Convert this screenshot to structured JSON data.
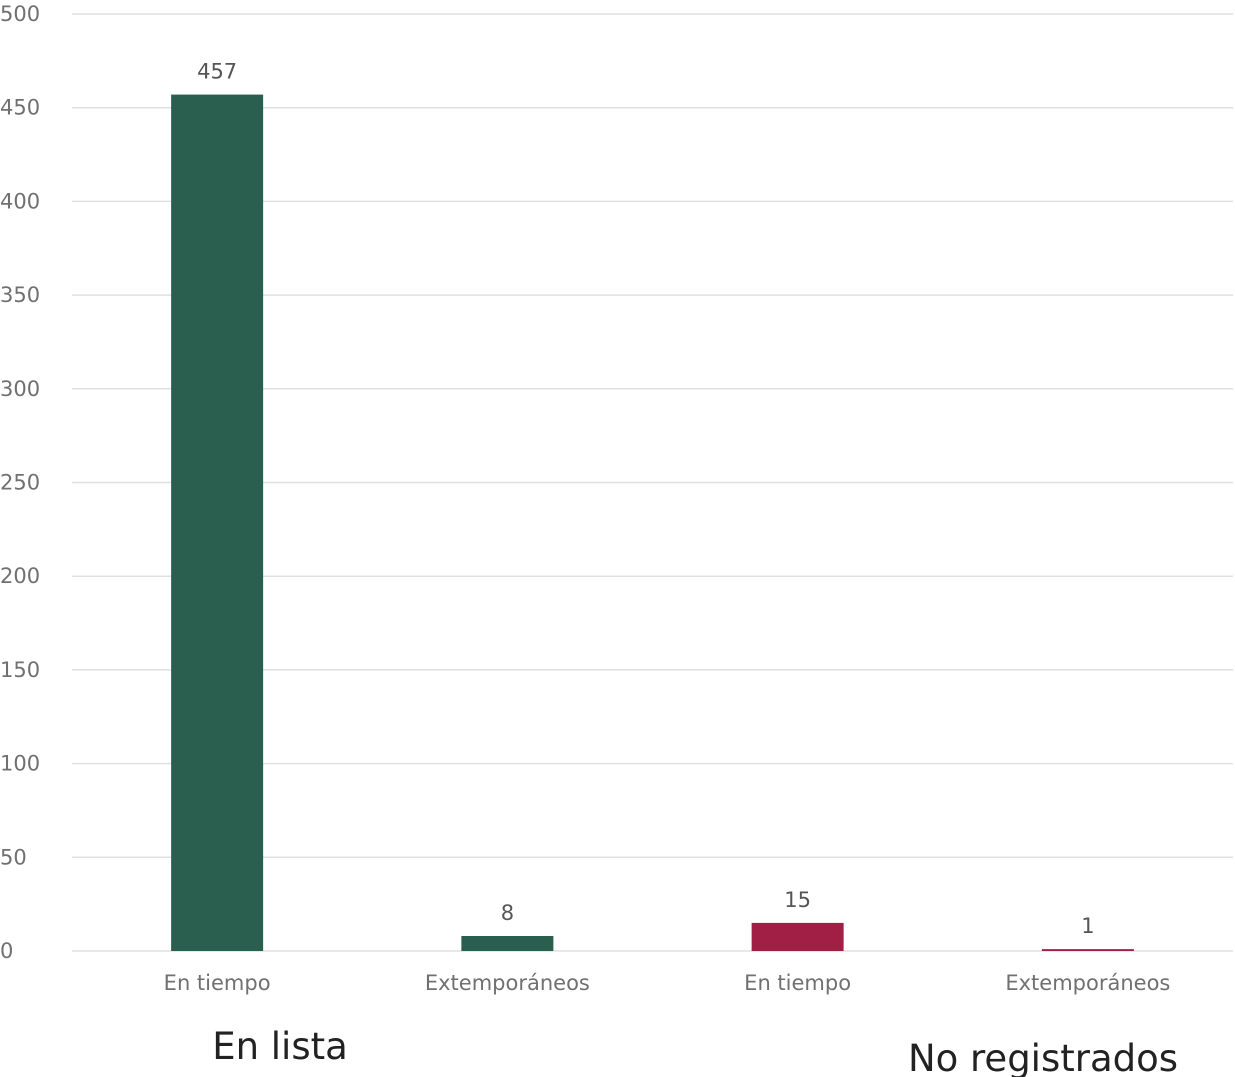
{
  "chart_data": {
    "type": "bar",
    "categories": [
      "En tiempo",
      "Extemporáneos",
      "En tiempo",
      "Extemporáneos"
    ],
    "groups": [
      {
        "label": "En lista",
        "categories": [
          "En tiempo",
          "Extemporáneos"
        ]
      },
      {
        "label": "No registrados",
        "categories": [
          "En tiempo",
          "Extemporáneos"
        ]
      }
    ],
    "values": [
      457,
      8,
      15,
      1
    ],
    "colors": [
      "#2a5e4e",
      "#2a5e4e",
      "#a11f44",
      "#a11f44"
    ],
    "data_labels": [
      "457",
      "8",
      "15",
      "1"
    ],
    "ylim": [
      0,
      500
    ],
    "yticks": [
      0,
      50,
      100,
      150,
      200,
      250,
      300,
      350,
      400,
      450,
      500
    ],
    "grid": true,
    "legend": "none"
  }
}
